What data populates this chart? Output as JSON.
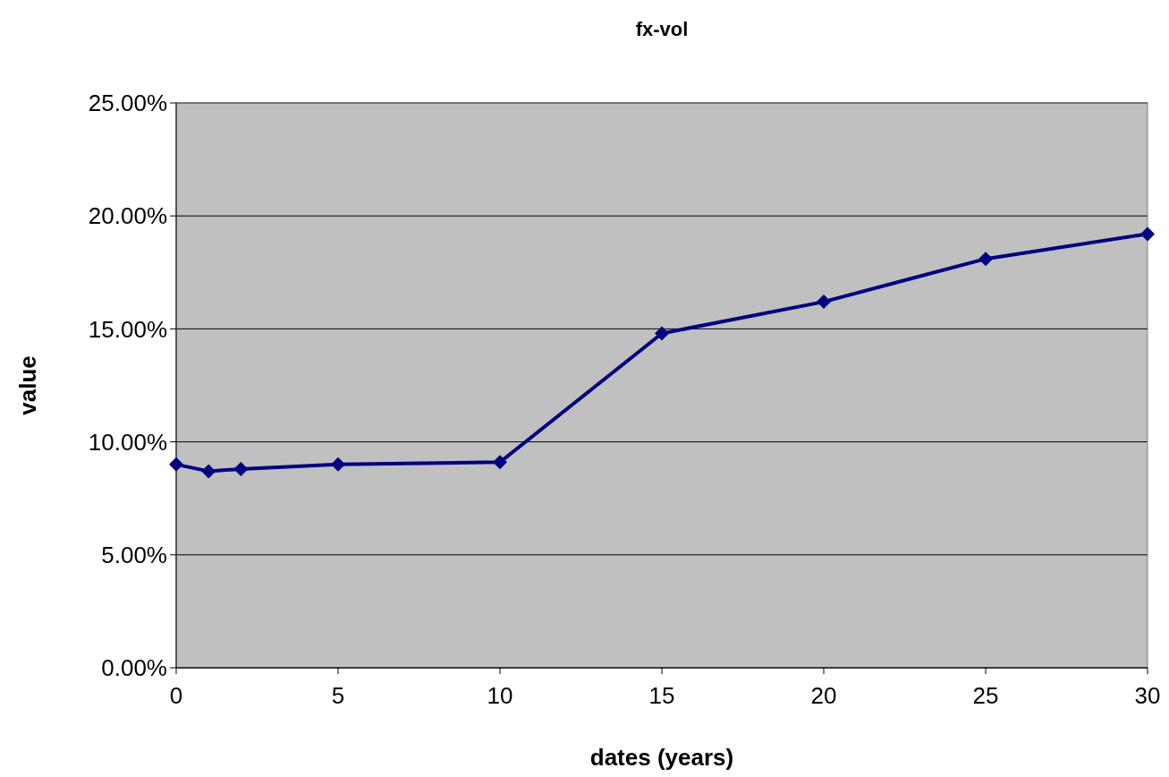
{
  "chart_data": {
    "type": "line",
    "title": "fx-vol",
    "xlabel": "dates (years)",
    "ylabel": "value",
    "x": [
      0,
      1,
      2,
      5,
      10,
      15,
      20,
      25,
      30
    ],
    "series": [
      {
        "color": "#000080",
        "values": [
          9.0,
          8.7,
          8.8,
          9.0,
          9.1,
          14.8,
          16.2,
          18.1,
          19.2
        ]
      }
    ],
    "xlim": [
      0,
      30
    ],
    "xticks": [
      0,
      5,
      10,
      15,
      20,
      25,
      30
    ],
    "ylim": [
      0,
      25
    ],
    "yticks": [
      {
        "value": 0,
        "label": "0.00%"
      },
      {
        "value": 5,
        "label": "5.00%"
      },
      {
        "value": 10,
        "label": "10.00%"
      },
      {
        "value": 15,
        "label": "15.00%"
      },
      {
        "value": 20,
        "label": "20.00%"
      },
      {
        "value": 25,
        "label": "25.00%"
      }
    ],
    "grid": "y",
    "marker": "diamond",
    "line_style": "solid"
  }
}
